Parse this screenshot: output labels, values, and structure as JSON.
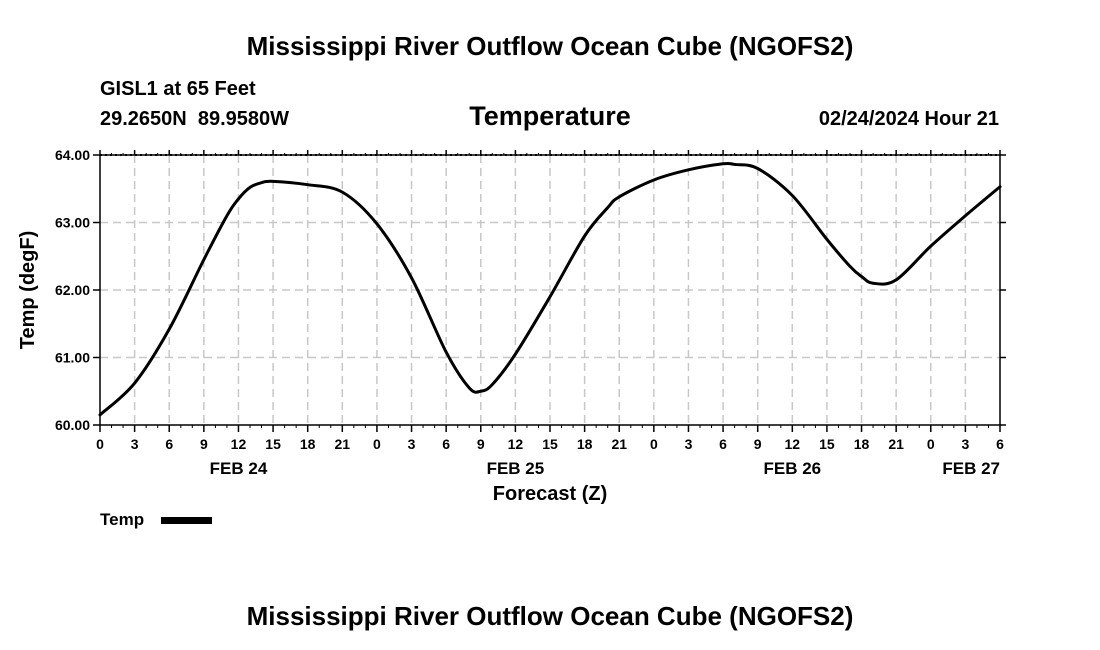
{
  "page": {
    "title_top": "Mississippi River Outflow Ocean Cube (NGOFS2)",
    "title_bottom": "Mississippi River Outflow Ocean Cube (NGOFS2)",
    "station": "GISL1 at 65 Feet",
    "coords": "29.2650N  89.9580W",
    "datetime": "02/24/2024 Hour 21"
  },
  "legend": {
    "label": "Temp"
  },
  "colors": {
    "line": "#000000",
    "grid": "#c8c8c8",
    "axis": "#000000"
  },
  "chart_data": {
    "type": "line",
    "title": "Temperature",
    "xlabel": "Forecast (Z)",
    "ylabel": "Temp (degF)",
    "xlim": [
      0,
      78
    ],
    "ylim": [
      60,
      64
    ],
    "grid": true,
    "x_unit": "hours from 00Z Feb 24",
    "yticks": [
      {
        "value": 60,
        "label": "60.00"
      },
      {
        "value": 61,
        "label": "61.00"
      },
      {
        "value": 62,
        "label": "62.00"
      },
      {
        "value": 63,
        "label": "63.00"
      },
      {
        "value": 64,
        "label": "64.00"
      }
    ],
    "xticks": [
      {
        "value": 0,
        "label": "0"
      },
      {
        "value": 3,
        "label": "3"
      },
      {
        "value": 6,
        "label": "6"
      },
      {
        "value": 9,
        "label": "9"
      },
      {
        "value": 12,
        "label": "12"
      },
      {
        "value": 15,
        "label": "15"
      },
      {
        "value": 18,
        "label": "18"
      },
      {
        "value": 21,
        "label": "21"
      },
      {
        "value": 24,
        "label": "0"
      },
      {
        "value": 27,
        "label": "3"
      },
      {
        "value": 30,
        "label": "6"
      },
      {
        "value": 33,
        "label": "9"
      },
      {
        "value": 36,
        "label": "12"
      },
      {
        "value": 39,
        "label": "15"
      },
      {
        "value": 42,
        "label": "18"
      },
      {
        "value": 45,
        "label": "21"
      },
      {
        "value": 48,
        "label": "0"
      },
      {
        "value": 51,
        "label": "3"
      },
      {
        "value": 54,
        "label": "6"
      },
      {
        "value": 57,
        "label": "9"
      },
      {
        "value": 60,
        "label": "12"
      },
      {
        "value": 63,
        "label": "15"
      },
      {
        "value": 66,
        "label": "18"
      },
      {
        "value": 69,
        "label": "21"
      },
      {
        "value": 72,
        "label": "0"
      },
      {
        "value": 75,
        "label": "3"
      },
      {
        "value": 78,
        "label": "6"
      }
    ],
    "date_labels": [
      {
        "value": 12,
        "label": "FEB 24"
      },
      {
        "value": 36,
        "label": "FEB 25"
      },
      {
        "value": 60,
        "label": "FEB 26"
      },
      {
        "value": 78,
        "label": "FEB 27"
      }
    ],
    "series": [
      {
        "name": "Temp",
        "x": [
          0,
          3,
          6,
          9,
          11,
          12,
          13,
          14,
          15,
          18,
          21,
          24,
          27,
          30,
          32,
          33,
          34,
          36,
          39,
          42,
          44,
          45,
          48,
          51,
          54,
          55,
          57,
          60,
          63,
          65,
          66,
          67,
          69,
          72,
          75,
          78
        ],
        "y": [
          60.15,
          60.62,
          61.42,
          62.45,
          63.1,
          63.35,
          63.52,
          63.59,
          63.61,
          63.56,
          63.45,
          62.98,
          62.18,
          61.08,
          60.55,
          60.5,
          60.6,
          61.05,
          61.9,
          62.8,
          63.22,
          63.38,
          63.63,
          63.78,
          63.87,
          63.86,
          63.8,
          63.4,
          62.75,
          62.35,
          62.2,
          62.1,
          62.15,
          62.65,
          63.1,
          63.53
        ]
      }
    ]
  }
}
